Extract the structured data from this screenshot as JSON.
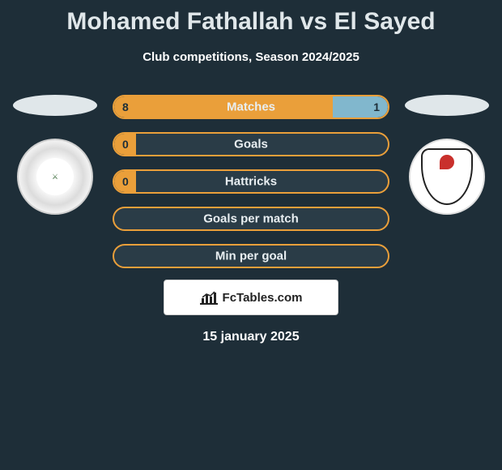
{
  "title": {
    "player1": "Mohamed Fathallah",
    "connector": "vs",
    "player2": "El Sayed"
  },
  "subtitle": "Club competitions, Season 2024/2025",
  "colors": {
    "background": "#1e2e38",
    "bar_border": "#ea9f3a",
    "left_fill": "#ea9f3a",
    "right_fill": "#81b7cd",
    "text": "#ffffff",
    "value_on_fill": "#1e2e38"
  },
  "club_icons": {
    "left": "tala-ea-el-gaish",
    "right": "enppi"
  },
  "stats": [
    {
      "label": "Matches",
      "left_value": "8",
      "right_value": "1",
      "left_pct": 80,
      "right_pct": 20
    },
    {
      "label": "Goals",
      "left_value": "0",
      "right_value": "",
      "left_pct": 8,
      "right_pct": 0
    },
    {
      "label": "Hattricks",
      "left_value": "0",
      "right_value": "",
      "left_pct": 8,
      "right_pct": 0
    },
    {
      "label": "Goals per match",
      "left_value": "",
      "right_value": "",
      "left_pct": 0,
      "right_pct": 0
    },
    {
      "label": "Min per goal",
      "left_value": "",
      "right_value": "",
      "left_pct": 0,
      "right_pct": 0
    }
  ],
  "attribution": "FcTables.com",
  "date": "15 january 2025"
}
